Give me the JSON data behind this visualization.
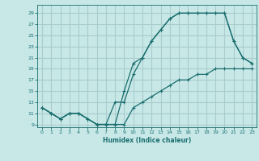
{
  "title": "",
  "xlabel": "Humidex (Indice chaleur)",
  "bg_color": "#c8e8e8",
  "grid_color": "#aacccc",
  "line_color": "#1a6e6e",
  "xlim": [
    -0.5,
    23.5
  ],
  "ylim": [
    8.5,
    30.5
  ],
  "xticks": [
    0,
    1,
    2,
    3,
    4,
    5,
    6,
    7,
    8,
    9,
    10,
    11,
    12,
    13,
    14,
    15,
    16,
    17,
    18,
    19,
    20,
    21,
    22,
    23
  ],
  "yticks": [
    9,
    11,
    13,
    15,
    17,
    19,
    21,
    23,
    25,
    27,
    29
  ],
  "line1_x": [
    0,
    1,
    2,
    3,
    4,
    5,
    6,
    7,
    8,
    9,
    10,
    11,
    12,
    13,
    14,
    15,
    16,
    17,
    18,
    19,
    20,
    21,
    22,
    23
  ],
  "line1_y": [
    12,
    11,
    10,
    11,
    11,
    10,
    9,
    9,
    9,
    15,
    20,
    21,
    24,
    26,
    28,
    29,
    29,
    29,
    29,
    29,
    29,
    24,
    21,
    20
  ],
  "line2_x": [
    0,
    1,
    2,
    3,
    4,
    5,
    6,
    7,
    8,
    9,
    10,
    11,
    12,
    13,
    14,
    15,
    16,
    17,
    18,
    19,
    20,
    21,
    22,
    23
  ],
  "line2_y": [
    12,
    11,
    10,
    11,
    11,
    10,
    9,
    9,
    13,
    13,
    18,
    21,
    24,
    26,
    28,
    29,
    29,
    29,
    29,
    29,
    29,
    24,
    21,
    20
  ],
  "line3_x": [
    0,
    1,
    2,
    3,
    4,
    5,
    6,
    7,
    8,
    9,
    10,
    11,
    12,
    13,
    14,
    15,
    16,
    17,
    18,
    19,
    20,
    21,
    22,
    23
  ],
  "line3_y": [
    12,
    11,
    10,
    11,
    11,
    10,
    9,
    9,
    9,
    9,
    12,
    13,
    14,
    15,
    16,
    17,
    17,
    18,
    18,
    19,
    19,
    19,
    19,
    19
  ]
}
